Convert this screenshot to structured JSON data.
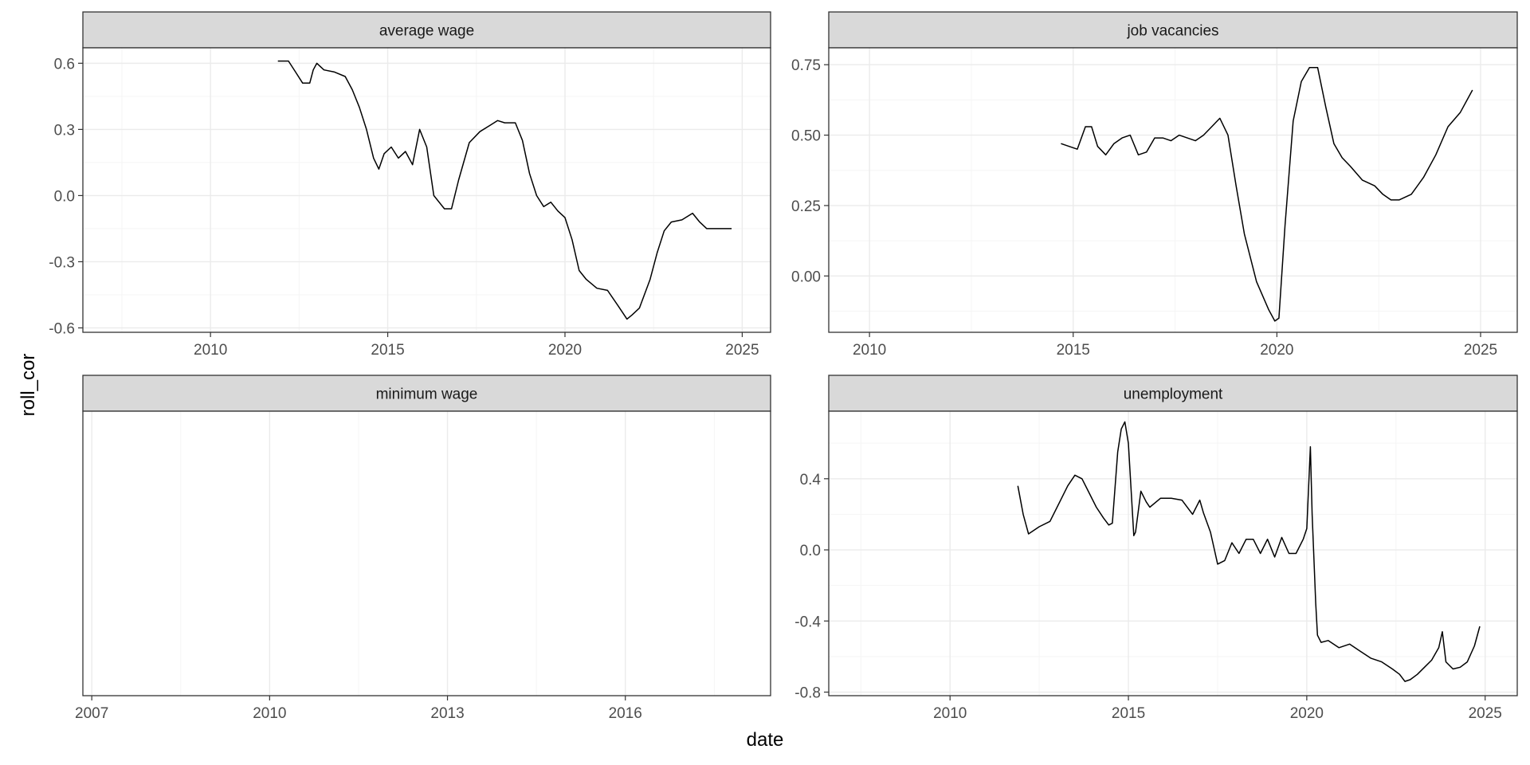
{
  "figure": {
    "xlabel": "date",
    "ylabel": "roll_cor"
  },
  "colors": {
    "strip_fill": "#d9d9d9",
    "line": "#000000",
    "grid_major": "#ebebeb",
    "grid_minor": "#f5f5f5",
    "tick_text": "#4d4d4d",
    "panel_border": "#333333"
  },
  "chart_data": [
    {
      "type": "line",
      "title": "average wage",
      "grid": true,
      "xlim": [
        2006.4,
        2025.8
      ],
      "xticks": [
        2010,
        2015,
        2020,
        2025
      ],
      "ylim": [
        -0.62,
        0.67
      ],
      "yticks": [
        -0.6,
        -0.3,
        0.0,
        0.3,
        0.6
      ],
      "ytick_labels": [
        "-0.6",
        "-0.3",
        "0.0",
        "0.3",
        "0.6"
      ],
      "series": [
        {
          "x": [
            2011.9,
            2012.2,
            2012.4,
            2012.6,
            2012.8,
            2012.9,
            2013.0,
            2013.2,
            2013.5,
            2013.8,
            2014.0,
            2014.2,
            2014.4,
            2014.6,
            2014.75,
            2014.9,
            2015.1,
            2015.3,
            2015.5,
            2015.7,
            2015.9,
            2016.1,
            2016.3,
            2016.6,
            2016.8,
            2017.0,
            2017.3,
            2017.6,
            2017.9,
            2018.1,
            2018.3,
            2018.6,
            2018.8,
            2019.0,
            2019.2,
            2019.4,
            2019.6,
            2019.8,
            2020.0,
            2020.2,
            2020.4,
            2020.6,
            2020.9,
            2021.2,
            2021.5,
            2021.75,
            2021.9,
            2022.1,
            2022.4,
            2022.6,
            2022.8,
            2023.0,
            2023.3,
            2023.6,
            2023.8,
            2024.0,
            2024.3,
            2024.7
          ],
          "y": [
            0.61,
            0.61,
            0.56,
            0.51,
            0.51,
            0.57,
            0.6,
            0.57,
            0.56,
            0.54,
            0.48,
            0.4,
            0.3,
            0.17,
            0.12,
            0.19,
            0.22,
            0.17,
            0.2,
            0.14,
            0.3,
            0.22,
            0.0,
            -0.06,
            -0.06,
            0.07,
            0.24,
            0.29,
            0.32,
            0.34,
            0.33,
            0.33,
            0.25,
            0.1,
            0.0,
            -0.05,
            -0.03,
            -0.07,
            -0.1,
            -0.2,
            -0.34,
            -0.38,
            -0.42,
            -0.43,
            -0.5,
            -0.56,
            -0.54,
            -0.51,
            -0.38,
            -0.26,
            -0.16,
            -0.12,
            -0.11,
            -0.08,
            -0.12,
            -0.15,
            -0.15,
            -0.15
          ]
        }
      ]
    },
    {
      "type": "line",
      "title": "job vacancies",
      "grid": true,
      "xlim": [
        2009.0,
        2025.9
      ],
      "xticks": [
        2010,
        2015,
        2020,
        2025
      ],
      "ylim": [
        -0.2,
        0.81
      ],
      "yticks": [
        0.0,
        0.25,
        0.5,
        0.75
      ],
      "ytick_labels": [
        "0.00",
        "0.25",
        "0.50",
        "0.75"
      ],
      "series": [
        {
          "x": [
            2014.7,
            2014.9,
            2015.1,
            2015.3,
            2015.45,
            2015.6,
            2015.8,
            2016.0,
            2016.2,
            2016.4,
            2016.6,
            2016.8,
            2017.0,
            2017.2,
            2017.4,
            2017.6,
            2017.8,
            2018.0,
            2018.2,
            2018.4,
            2018.6,
            2018.8,
            2019.0,
            2019.2,
            2019.5,
            2019.8,
            2019.95,
            2020.05,
            2020.2,
            2020.4,
            2020.6,
            2020.8,
            2021.0,
            2021.2,
            2021.4,
            2021.6,
            2021.8,
            2022.1,
            2022.4,
            2022.6,
            2022.8,
            2023.0,
            2023.3,
            2023.6,
            2023.9,
            2024.2,
            2024.5,
            2024.8
          ],
          "y": [
            0.47,
            0.46,
            0.45,
            0.53,
            0.53,
            0.46,
            0.43,
            0.47,
            0.49,
            0.5,
            0.43,
            0.44,
            0.49,
            0.49,
            0.48,
            0.5,
            0.49,
            0.48,
            0.5,
            0.53,
            0.56,
            0.5,
            0.32,
            0.15,
            -0.02,
            -0.12,
            -0.16,
            -0.15,
            0.18,
            0.55,
            0.69,
            0.74,
            0.74,
            0.6,
            0.47,
            0.42,
            0.39,
            0.34,
            0.32,
            0.29,
            0.27,
            0.27,
            0.29,
            0.35,
            0.43,
            0.53,
            0.58,
            0.66
          ]
        }
      ]
    },
    {
      "type": "line",
      "title": "minimum wage",
      "grid": true,
      "xlim": [
        2006.85,
        2018.45
      ],
      "xticks": [
        2007,
        2010,
        2013,
        2016
      ],
      "ylim": [
        0,
        1
      ],
      "yticks": [],
      "ytick_labels": [],
      "series": [
        {
          "x": [],
          "y": []
        }
      ]
    },
    {
      "type": "line",
      "title": "unemployment",
      "grid": true,
      "xlim": [
        2006.6,
        2025.9
      ],
      "xticks": [
        2010,
        2015,
        2020,
        2025
      ],
      "ylim": [
        -0.82,
        0.78
      ],
      "yticks": [
        -0.8,
        -0.4,
        0.0,
        0.4
      ],
      "ytick_labels": [
        "-0.8",
        "-0.4",
        "0.0",
        "0.4"
      ],
      "series": [
        {
          "x": [
            2011.9,
            2012.05,
            2012.2,
            2012.5,
            2012.8,
            2013.1,
            2013.3,
            2013.5,
            2013.7,
            2013.9,
            2014.1,
            2014.3,
            2014.45,
            2014.55,
            2014.7,
            2014.8,
            2014.9,
            2015.0,
            2015.15,
            2015.2,
            2015.35,
            2015.5,
            2015.6,
            2015.9,
            2016.2,
            2016.5,
            2016.8,
            2017.0,
            2017.1,
            2017.3,
            2017.5,
            2017.7,
            2017.9,
            2018.1,
            2018.3,
            2018.5,
            2018.7,
            2018.9,
            2019.1,
            2019.3,
            2019.5,
            2019.7,
            2019.9,
            2020.0,
            2020.1,
            2020.15,
            2020.25,
            2020.3,
            2020.4,
            2020.6,
            2020.9,
            2021.2,
            2021.5,
            2021.8,
            2022.1,
            2022.4,
            2022.6,
            2022.75,
            2022.9,
            2023.1,
            2023.3,
            2023.5,
            2023.7,
            2023.8,
            2023.9,
            2024.1,
            2024.3,
            2024.5,
            2024.7,
            2024.85
          ],
          "y": [
            0.36,
            0.2,
            0.09,
            0.13,
            0.16,
            0.28,
            0.36,
            0.42,
            0.4,
            0.32,
            0.24,
            0.18,
            0.14,
            0.15,
            0.55,
            0.68,
            0.72,
            0.6,
            0.08,
            0.1,
            0.33,
            0.27,
            0.24,
            0.29,
            0.29,
            0.28,
            0.2,
            0.28,
            0.21,
            0.1,
            -0.08,
            -0.06,
            0.04,
            -0.02,
            0.06,
            0.06,
            -0.02,
            0.06,
            -0.04,
            0.07,
            -0.02,
            -0.02,
            0.06,
            0.12,
            0.58,
            0.2,
            -0.3,
            -0.48,
            -0.52,
            -0.51,
            -0.55,
            -0.53,
            -0.57,
            -0.61,
            -0.63,
            -0.67,
            -0.7,
            -0.74,
            -0.73,
            -0.7,
            -0.66,
            -0.62,
            -0.55,
            -0.46,
            -0.63,
            -0.67,
            -0.66,
            -0.63,
            -0.54,
            -0.43
          ]
        }
      ]
    }
  ]
}
